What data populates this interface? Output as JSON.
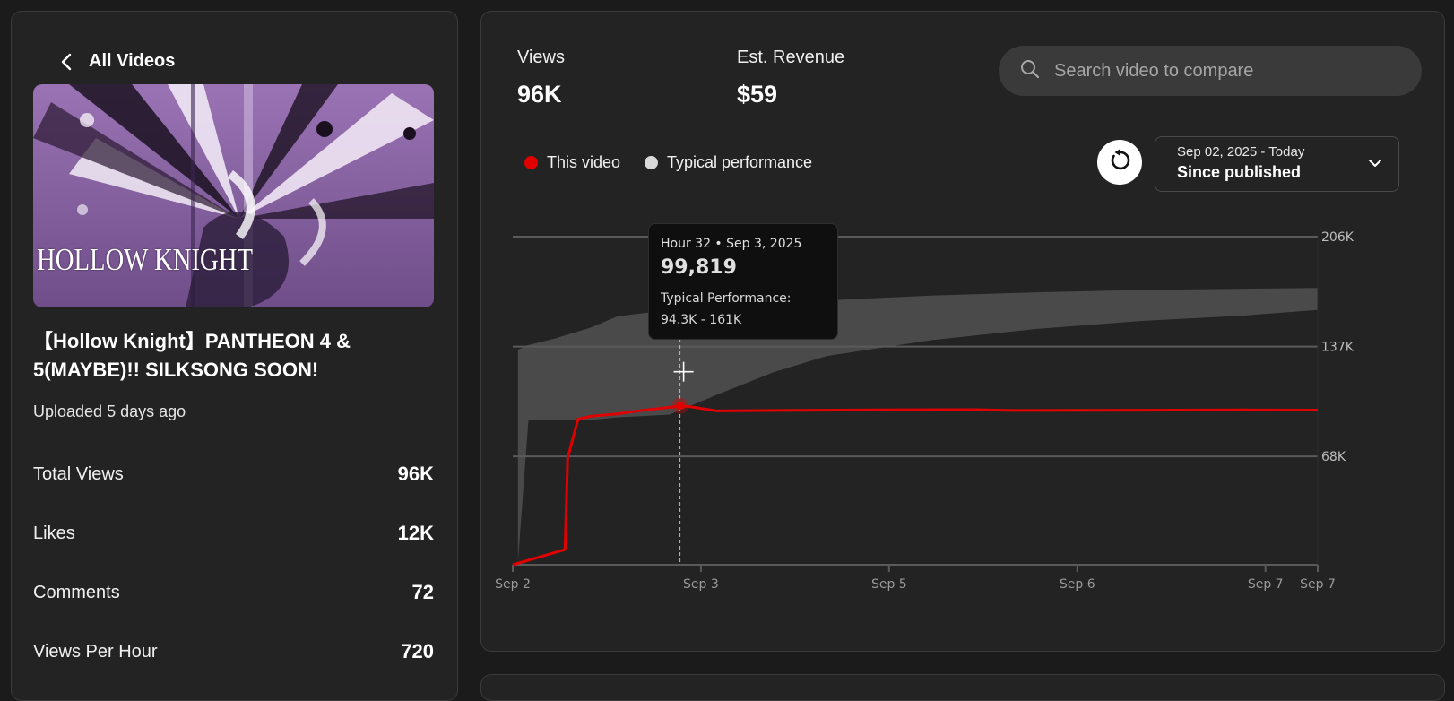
{
  "nav": {
    "back_label": "All Videos"
  },
  "video": {
    "thumbnail_text": "HOLLOW KNIGHT",
    "title": "【Hollow Knight】PANTHEON 4 & 5(MAYBE)!! SILKSONG SOON!",
    "uploaded": "Uploaded 5 days ago"
  },
  "stats": [
    {
      "label": "Total Views",
      "value": "96K"
    },
    {
      "label": "Likes",
      "value": "12K"
    },
    {
      "label": "Comments",
      "value": "72"
    },
    {
      "label": "Views Per Hour",
      "value": "720"
    }
  ],
  "metrics": {
    "views_label": "Views",
    "views_value": "96K",
    "revenue_label": "Est. Revenue",
    "revenue_value": "$59"
  },
  "search": {
    "placeholder": "Search video to compare"
  },
  "legend": {
    "this_video": "This video",
    "typical": "Typical performance"
  },
  "date_range": {
    "range": "Sep 02, 2025 - Today",
    "label": "Since published"
  },
  "tooltip": {
    "header": "Hour 32 • Sep 3, 2025",
    "value": "99,819",
    "typical_label": "Typical Performance:",
    "typical_range": "94.3K - 161K"
  },
  "colors": {
    "this_video": "#e00000",
    "typical": "#d9d9d9",
    "band": "#4a4a4a"
  },
  "icons": {
    "back": "chevron-left-icon",
    "search": "search-icon",
    "reset": "reset-icon",
    "dropdown": "chevron-down-icon"
  },
  "chart_data": {
    "type": "line",
    "x_unit": "hours since publish",
    "xlim": [
      0,
      154
    ],
    "ylim": [
      0,
      206000
    ],
    "y_ticks": [
      {
        "value": 68000,
        "label": "68K"
      },
      {
        "value": 137000,
        "label": "137K"
      },
      {
        "value": 206000,
        "label": "206K"
      }
    ],
    "x_ticks": [
      {
        "value": 0,
        "label": "Sep 2"
      },
      {
        "value": 36,
        "label": "Sep 3"
      },
      {
        "value": 72,
        "label": "Sep 5"
      },
      {
        "value": 108,
        "label": "Sep 6"
      },
      {
        "value": 144,
        "label": "Sep 7"
      },
      {
        "value": 154,
        "label": "Sep 7"
      }
    ],
    "grid": true,
    "series": [
      {
        "name": "This video",
        "x": [
          0,
          10,
          10.5,
          12.5,
          15,
          20,
          25,
          31,
          32,
          34,
          39,
          50,
          70,
          88,
          96,
          120,
          140,
          154
        ],
        "values": [
          0,
          9500,
          67000,
          91500,
          93300,
          94700,
          97000,
          99200,
          99819,
          99200,
          96600,
          96900,
          97200,
          97400,
          96900,
          97000,
          97200,
          97100
        ]
      }
    ],
    "band": {
      "name": "Typical performance",
      "x": [
        1,
        3,
        8,
        15,
        20,
        30,
        40,
        50,
        60,
        80,
        100,
        120,
        140,
        154
      ],
      "upper": [
        135000,
        138000,
        142000,
        149000,
        156000,
        160000,
        162500,
        164500,
        166000,
        169000,
        171000,
        172500,
        173300,
        173800
      ],
      "lower": [
        2000,
        91000,
        91000,
        91000,
        92500,
        94300,
        108000,
        121000,
        131000,
        141000,
        148000,
        153000,
        156500,
        160000
      ]
    },
    "highlight": {
      "x": 32,
      "value": 99819
    }
  }
}
